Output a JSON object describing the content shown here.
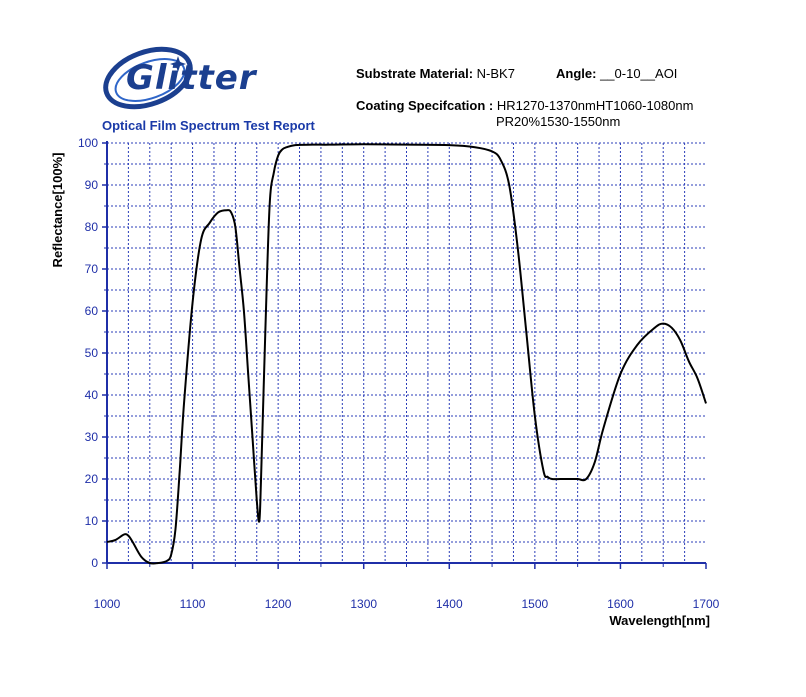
{
  "header": {
    "logo_text": "Glitter",
    "report_title": "Optical Film Spectrum Test Report",
    "substrate_label": "Substrate Material:",
    "substrate_value": "N-BK7",
    "angle_label": "Angle:",
    "angle_value": "__0-10__AOI",
    "coating_label": "Coating Specifcation :",
    "coating_value_1": "HR1270-1370nmHT1060-1080nm",
    "coating_value_2": "PR20%1530-1550nm"
  },
  "colors": {
    "brand_blue": "#1b3f8f",
    "title_blue": "#1a3aa8",
    "axis_blue": "#1f2fa8",
    "grid_blue": "#2b3db8",
    "curve": "#000000"
  },
  "chart_data": {
    "type": "line",
    "title": "",
    "xlabel": "Wavelength[nm]",
    "ylabel": "Reflectance[100%]",
    "xlim": [
      1000,
      1700
    ],
    "ylim": [
      0,
      100
    ],
    "xticks": [
      1000,
      1100,
      1200,
      1300,
      1400,
      1500,
      1600,
      1700
    ],
    "yticks": [
      0,
      10,
      20,
      30,
      40,
      50,
      60,
      70,
      80,
      90,
      100
    ],
    "grid": true,
    "series": [
      {
        "x": [
          1000,
          1010,
          1020,
          1025,
          1030,
          1040,
          1050,
          1060,
          1070,
          1075,
          1080,
          1085,
          1090,
          1100,
          1110,
          1120,
          1130,
          1140,
          1145,
          1150,
          1155,
          1160,
          1165,
          1170,
          1175,
          1178,
          1180,
          1185,
          1190,
          1195,
          1200,
          1205,
          1210,
          1220,
          1240,
          1260,
          1300,
          1350,
          1400,
          1430,
          1450,
          1460,
          1470,
          1480,
          1490,
          1500,
          1510,
          1515,
          1520,
          1530,
          1540,
          1550,
          1560,
          1570,
          1580,
          1600,
          1620,
          1640,
          1650,
          1660,
          1670,
          1680,
          1690,
          1700
        ],
        "y": [
          5,
          5.5,
          6.8,
          6.5,
          5,
          1.5,
          0,
          0,
          0.5,
          2,
          8,
          22,
          38,
          62,
          77,
          81,
          83.5,
          84,
          83.5,
          80,
          70,
          60,
          45,
          30,
          15,
          10,
          20,
          55,
          85,
          93,
          97,
          98.5,
          99,
          99.5,
          99.6,
          99.6,
          99.7,
          99.6,
          99.5,
          99,
          98,
          96,
          90,
          75,
          55,
          35,
          22,
          20.5,
          20,
          20,
          20,
          20,
          20,
          24,
          32,
          45,
          52,
          56,
          57,
          56,
          53,
          48,
          44,
          38
        ]
      }
    ]
  }
}
